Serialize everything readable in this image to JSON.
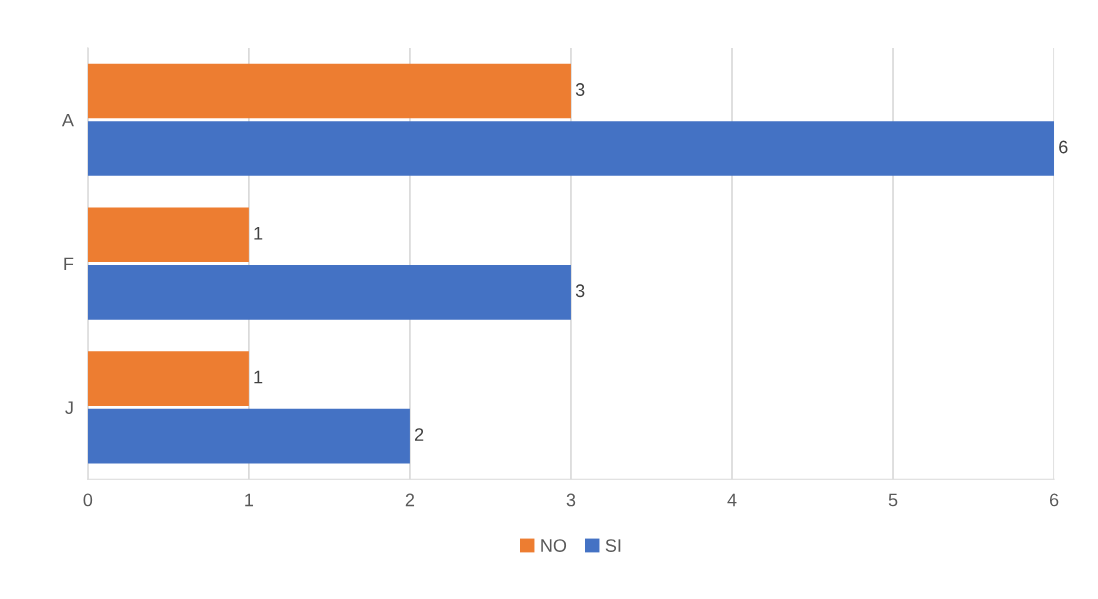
{
  "chart_data": {
    "type": "bar",
    "orientation": "horizontal",
    "categories": [
      "A",
      "F",
      "J"
    ],
    "series": [
      {
        "name": "NO",
        "color": "#ed7d31",
        "values": [
          3,
          1,
          1
        ]
      },
      {
        "name": "SI",
        "color": "#4472c4",
        "values": [
          6,
          3,
          2
        ]
      }
    ],
    "xlim": [
      0,
      6
    ],
    "xticks": [
      0,
      1,
      2,
      3,
      4,
      5,
      6
    ],
    "grid": "x",
    "legend": "bottom",
    "data_labels": true
  }
}
